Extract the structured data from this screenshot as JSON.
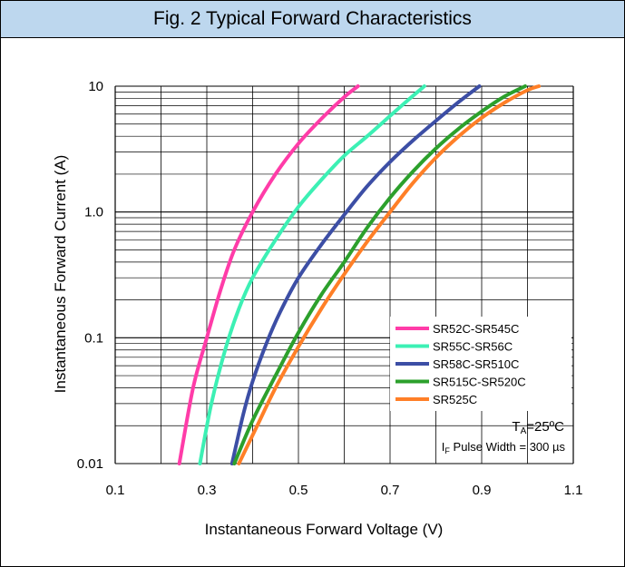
{
  "chart_data": {
    "type": "line",
    "title": "Fig. 2 Typical Forward Characteristics",
    "xlabel": "Instantaneous Forward Voltage (V)",
    "ylabel": "Instantaneous Forward Current (A)",
    "x_scale": "linear",
    "y_scale": "log",
    "xlim": [
      0.1,
      1.1
    ],
    "ylim": [
      0.01,
      10
    ],
    "x_ticks": [
      "0.1",
      "0.3",
      "0.5",
      "0.7",
      "0.9",
      "1.1"
    ],
    "y_ticks": [
      "0.01",
      "0.1",
      "1.0",
      "10"
    ],
    "grid": true,
    "legend_position": "bottom-right",
    "annotation_ta": "T",
    "annotation_ta_sub": "A",
    "annotation_ta_rest": "=25ºC",
    "annotation_if": "I",
    "annotation_if_sub": "F",
    "annotation_if_rest": " Pulse Width = 300 µs",
    "series": [
      {
        "name": "SR52C-SR545C",
        "color": "#ff3ca8",
        "x": [
          0.24,
          0.27,
          0.3,
          0.33,
          0.36,
          0.4,
          0.45,
          0.5,
          0.55,
          0.6,
          0.63
        ],
        "y": [
          0.01,
          0.04,
          0.1,
          0.24,
          0.5,
          1.0,
          2.0,
          3.5,
          5.5,
          8.2,
          10
        ]
      },
      {
        "name": "SR55C-SR56C",
        "color": "#3cf0b4",
        "x": [
          0.285,
          0.31,
          0.34,
          0.37,
          0.4,
          0.45,
          0.5,
          0.55,
          0.6,
          0.65,
          0.7,
          0.74,
          0.775
        ],
        "y": [
          0.01,
          0.03,
          0.08,
          0.17,
          0.3,
          0.6,
          1.1,
          1.8,
          2.8,
          4.0,
          5.8,
          7.8,
          10
        ]
      },
      {
        "name": "SR58C-SR510C",
        "color": "#3c4ea5",
        "x": [
          0.355,
          0.38,
          0.4,
          0.43,
          0.46,
          0.5,
          0.55,
          0.6,
          0.65,
          0.7,
          0.75,
          0.8,
          0.85,
          0.895
        ],
        "y": [
          0.01,
          0.025,
          0.045,
          0.09,
          0.16,
          0.3,
          0.55,
          0.95,
          1.6,
          2.5,
          3.7,
          5.3,
          7.5,
          10
        ]
      },
      {
        "name": "SR515C-SR520C",
        "color": "#2ca02c",
        "x": [
          0.36,
          0.4,
          0.45,
          0.5,
          0.55,
          0.6,
          0.65,
          0.7,
          0.75,
          0.8,
          0.85,
          0.9,
          0.95,
          0.995
        ],
        "y": [
          0.01,
          0.022,
          0.05,
          0.11,
          0.22,
          0.4,
          0.75,
          1.3,
          2.1,
          3.2,
          4.6,
          6.3,
          8.3,
          10
        ]
      },
      {
        "name": "SR525C",
        "color": "#ff7f27",
        "x": [
          0.37,
          0.41,
          0.45,
          0.5,
          0.55,
          0.6,
          0.65,
          0.7,
          0.75,
          0.8,
          0.85,
          0.9,
          0.95,
          1.0,
          1.025
        ],
        "y": [
          0.01,
          0.02,
          0.04,
          0.085,
          0.17,
          0.32,
          0.58,
          1.0,
          1.7,
          2.7,
          4.0,
          5.6,
          7.4,
          9.3,
          10
        ]
      }
    ]
  }
}
